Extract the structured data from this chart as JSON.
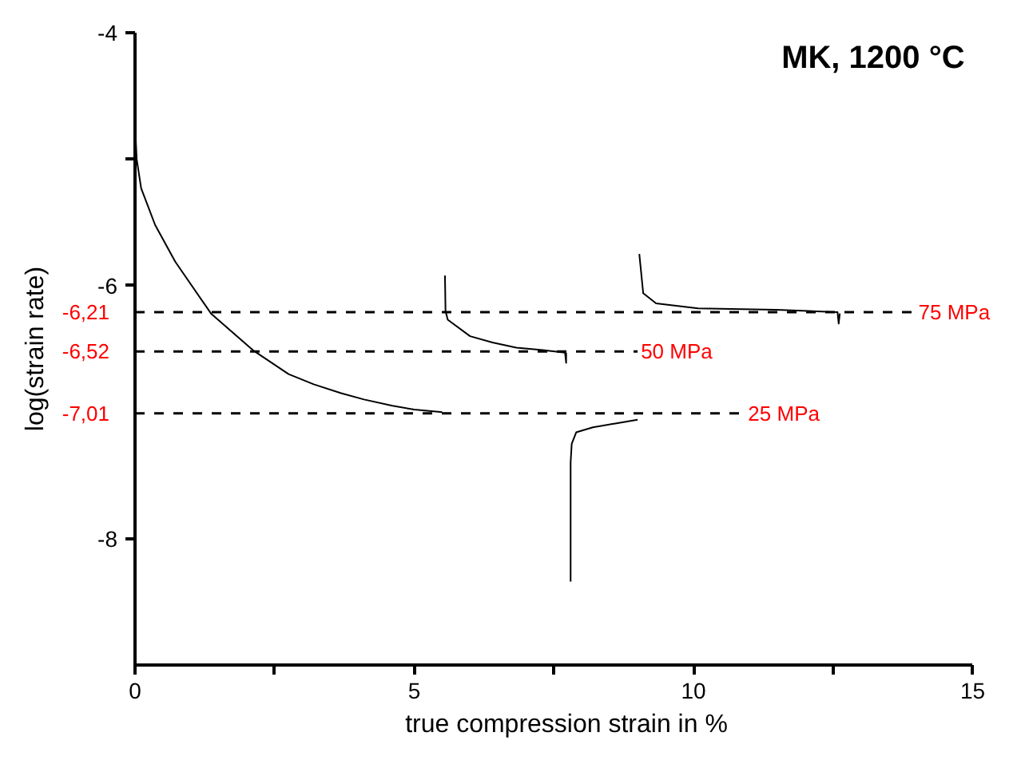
{
  "chart_data": {
    "type": "line",
    "title": "MK, 1200 °C",
    "xlabel": "true compression strain in %",
    "ylabel": "log(strain rate)",
    "xlim": [
      0,
      15
    ],
    "ylim": [
      -9,
      -4
    ],
    "xticks": [
      0,
      {
        "value": 2.5,
        "label": null
      },
      5,
      {
        "value": 7.5,
        "label": null
      },
      10,
      {
        "value": 12.5,
        "label": null
      },
      15
    ],
    "yticks": [
      -4,
      {
        "value": -5,
        "label": null
      },
      -6,
      -8
    ],
    "line_style": "solid",
    "series": [
      {
        "color": "#000000",
        "x": [
          0,
          0.03,
          0.11,
          0.36,
          0.72,
          1.36,
          2.11,
          2.75,
          3.2,
          3.69,
          4.1,
          4.61,
          5.0,
          5.5
        ],
        "values": [
          -4.72,
          -5.0,
          -5.23,
          -5.52,
          -5.81,
          -6.22,
          -6.51,
          -6.7,
          -6.78,
          -6.85,
          -6.9,
          -6.95,
          -6.98,
          -7.0
        ]
      },
      {
        "color": "#000000",
        "x": [
          5.55,
          5.56,
          5.6,
          6.0,
          6.4,
          6.83,
          7.3,
          7.7,
          7.72,
          7.72
        ],
        "values": [
          -5.92,
          -6.2,
          -6.27,
          -6.4,
          -6.45,
          -6.49,
          -6.51,
          -6.53,
          -6.61,
          -6.53
        ]
      },
      {
        "color": "#000000",
        "x": [
          7.8,
          7.8,
          7.82,
          7.9,
          8.2,
          8.6,
          9.0
        ],
        "values": [
          -8.34,
          -7.4,
          -7.25,
          -7.16,
          -7.12,
          -7.09,
          -7.06
        ]
      },
      {
        "color": "#000000",
        "x": [
          9.03,
          9.1,
          9.33,
          10.08,
          11.47,
          12.58,
          12.6,
          12.62
        ],
        "values": [
          -5.75,
          -6.06,
          -6.14,
          -6.18,
          -6.19,
          -6.21,
          -6.3,
          -6.22
        ]
      }
    ],
    "ref_lines": [
      {
        "axis": "y",
        "value": -6.21,
        "label": "-6,21",
        "color": "#000000",
        "line_style": "dashed"
      },
      {
        "axis": "y",
        "value": -6.52,
        "label": "-6,52",
        "color": "#000000",
        "line_style": "dashed"
      },
      {
        "axis": "y",
        "value": -7.01,
        "label": "-7,01",
        "color": "#000000",
        "line_style": "dashed"
      }
    ],
    "annotations": [
      {
        "text": "75 MPa",
        "x": 13.97,
        "y": -6.21
      },
      {
        "text": "50 MPa",
        "x": 9.0,
        "y": -6.52
      },
      {
        "text": "25 MPa",
        "x": 10.92,
        "y": -7.01
      }
    ]
  }
}
